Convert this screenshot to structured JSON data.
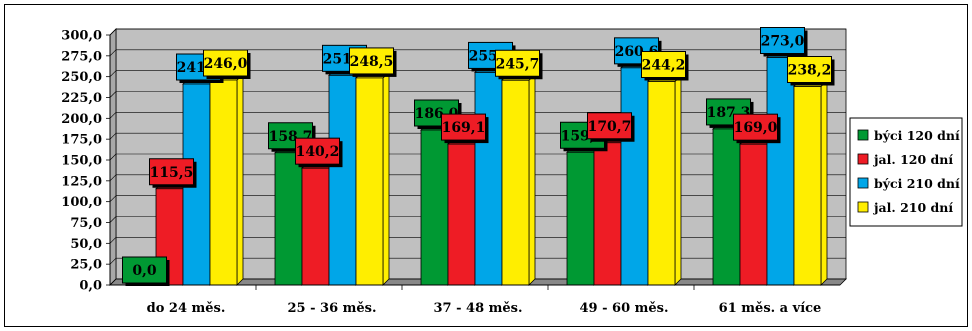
{
  "chart_data": {
    "type": "bar",
    "categories": [
      "do 24 měs.",
      "25 - 36 měs.",
      "37 - 48 měs.",
      "49 - 60 měs.",
      "61 měs. a více"
    ],
    "series": [
      {
        "name": "býci 120 dní",
        "color": "#009933",
        "values": [
          0.0,
          158.7,
          186.0,
          159.3,
          187.3
        ]
      },
      {
        "name": "jal. 120 dní",
        "color": "#ee1c25",
        "values": [
          115.5,
          140.2,
          169.1,
          170.7,
          169.0
        ]
      },
      {
        "name": "býci 210 dní",
        "color": "#00a6e8",
        "values": [
          241.2,
          251.6,
          255.1,
          260.6,
          273.0
        ]
      },
      {
        "name": "jal. 210 dní",
        "color": "#ffee00",
        "values": [
          246.0,
          248.5,
          245.7,
          244.2,
          238.2
        ]
      }
    ],
    "value_labels": [
      [
        "0,0",
        "158,7",
        "186,0",
        "159,3",
        "187,3"
      ],
      [
        "115,5",
        "140,2",
        "169,1",
        "170,7",
        "169,0"
      ],
      [
        "241,2",
        "251,6",
        "255,1",
        "260,6",
        "273,0"
      ],
      [
        "246,0",
        "248,5",
        "245,7",
        "244,2",
        "238,2"
      ]
    ],
    "y_ticks": [
      "0,0",
      "25,0",
      "50,0",
      "75,0",
      "100,0",
      "125,0",
      "150,0",
      "175,0",
      "200,0",
      "225,0",
      "250,0",
      "275,0",
      "300,0"
    ],
    "ylim": [
      0,
      300
    ],
    "y_step": 25,
    "grid": true,
    "legend_position": "right",
    "plot_background": "#c0c0c0"
  }
}
